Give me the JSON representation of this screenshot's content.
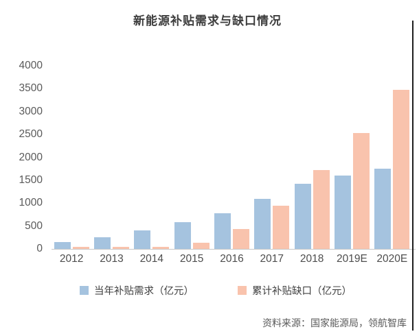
{
  "title": "新能源补贴需求与缺口情况",
  "source": "资料来源：国家能源局，领航智库",
  "colors": {
    "demand_bar": "#a5c3df",
    "gap_bar": "#f9c3ad",
    "title_text": "#3d3d3d",
    "axis_text": "#595959",
    "axis_line": "#c6c6c6",
    "right_border": "#1c1c1c"
  },
  "legend": {
    "demand_label": "当年补贴需求（亿元）",
    "gap_label": "累计补贴缺口（亿元）"
  },
  "chart_data": {
    "type": "bar",
    "title": "新能源补贴需求与缺口情况",
    "categories": [
      "2012",
      "2013",
      "2014",
      "2015",
      "2016",
      "2017",
      "2018",
      "2019E",
      "2020E"
    ],
    "series": [
      {
        "name": "当年补贴需求（亿元）",
        "color": "#a5c3df",
        "values": [
          150,
          250,
          400,
          580,
          780,
          1100,
          1420,
          1600,
          1760
        ]
      },
      {
        "name": "累计补贴缺口（亿元）",
        "color": "#f9c3ad",
        "values": [
          40,
          40,
          40,
          140,
          430,
          950,
          1720,
          2530,
          3480
        ]
      }
    ],
    "xlabel": "",
    "ylabel": "",
    "ylim": [
      0,
      4000
    ],
    "yticks": [
      0,
      500,
      1000,
      1500,
      2000,
      2500,
      3000,
      3500,
      4000
    ],
    "grid": false,
    "legend_position": "bottom"
  }
}
